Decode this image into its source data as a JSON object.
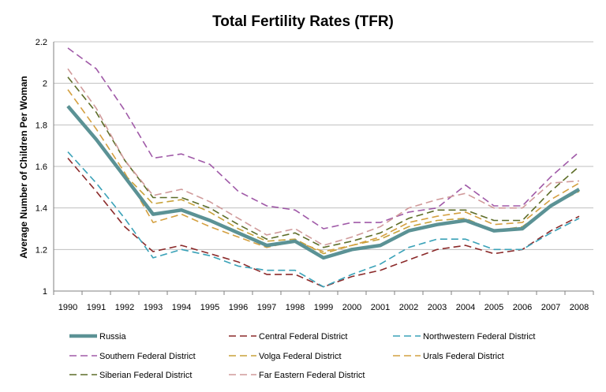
{
  "chart_data": {
    "type": "line",
    "title": "Total Fertility Rates (TFR)",
    "xlabel": "",
    "ylabel": "Average Number of Children Per Woman",
    "ylim": [
      1,
      2.2
    ],
    "yticks": [
      "1",
      "1.2",
      "1.4",
      "1.6",
      "1.8",
      "2",
      "2.2"
    ],
    "grid": true,
    "legend_position": "bottom",
    "categories": [
      "1990",
      "1991",
      "1992",
      "1993",
      "1994",
      "1995",
      "1996",
      "1997",
      "1998",
      "1999",
      "2000",
      "2001",
      "2002",
      "2003",
      "2004",
      "2005",
      "2006",
      "2007",
      "2008"
    ],
    "series": [
      {
        "name": "Russia",
        "color": "#5b9295",
        "style": "solid",
        "values": [
          1.89,
          1.73,
          1.55,
          1.37,
          1.39,
          1.34,
          1.28,
          1.22,
          1.24,
          1.16,
          1.2,
          1.22,
          1.29,
          1.32,
          1.34,
          1.29,
          1.3,
          1.41,
          1.49
        ]
      },
      {
        "name": "Central Federal District",
        "color": "#8b2a2a",
        "style": "dash",
        "values": [
          1.64,
          1.48,
          1.31,
          1.19,
          1.22,
          1.18,
          1.14,
          1.08,
          1.08,
          1.02,
          1.07,
          1.1,
          1.15,
          1.2,
          1.22,
          1.18,
          1.2,
          1.29,
          1.36
        ]
      },
      {
        "name": "Northwestern Federal District",
        "color": "#3aa2b8",
        "style": "dash",
        "values": [
          1.67,
          1.52,
          1.35,
          1.16,
          1.2,
          1.17,
          1.12,
          1.1,
          1.1,
          1.02,
          1.08,
          1.13,
          1.21,
          1.25,
          1.25,
          1.2,
          1.2,
          1.28,
          1.35
        ]
      },
      {
        "name": "Southern Federal District",
        "color": "#a05aa8",
        "style": "dash",
        "values": [
          2.17,
          2.07,
          1.87,
          1.64,
          1.66,
          1.61,
          1.48,
          1.41,
          1.39,
          1.3,
          1.33,
          1.33,
          1.38,
          1.4,
          1.51,
          1.41,
          1.41,
          1.55,
          1.67
        ]
      },
      {
        "name": "Volga Federal District",
        "color": "#c8a23a",
        "style": "dash",
        "values": [
          1.89,
          1.73,
          1.56,
          1.42,
          1.44,
          1.38,
          1.3,
          1.24,
          1.25,
          1.18,
          1.22,
          1.25,
          1.31,
          1.34,
          1.35,
          1.29,
          1.31,
          1.41,
          1.48
        ]
      },
      {
        "name": "Urals Federal District",
        "color": "#d4a040",
        "style": "dash",
        "values": [
          1.97,
          1.78,
          1.57,
          1.33,
          1.37,
          1.31,
          1.26,
          1.21,
          1.24,
          1.19,
          1.22,
          1.26,
          1.33,
          1.36,
          1.38,
          1.32,
          1.33,
          1.44,
          1.52
        ]
      },
      {
        "name": "Siberian Federal District",
        "color": "#5d6d28",
        "style": "dash",
        "values": [
          2.03,
          1.86,
          1.63,
          1.45,
          1.45,
          1.4,
          1.32,
          1.25,
          1.28,
          1.21,
          1.24,
          1.28,
          1.35,
          1.39,
          1.39,
          1.34,
          1.34,
          1.48,
          1.6
        ]
      },
      {
        "name": "Far Eastern Federal District",
        "color": "#d09a9a",
        "style": "dash",
        "values": [
          2.07,
          1.88,
          1.63,
          1.46,
          1.49,
          1.43,
          1.35,
          1.27,
          1.3,
          1.22,
          1.26,
          1.31,
          1.4,
          1.44,
          1.47,
          1.4,
          1.4,
          1.52,
          1.53
        ]
      }
    ]
  }
}
